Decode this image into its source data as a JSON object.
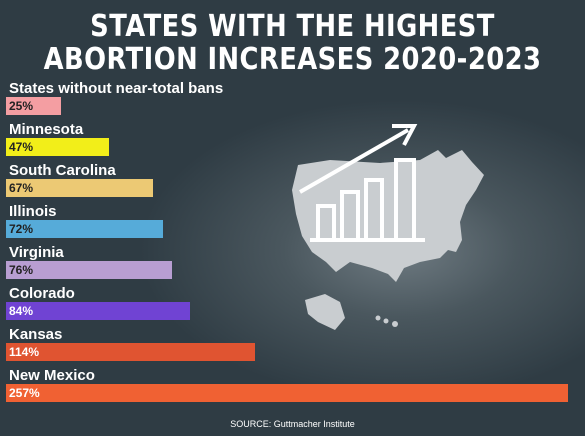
{
  "chart_data": {
    "type": "bar",
    "orientation": "horizontal",
    "title": "STATES WITH THE HIGHEST ABORTION INCREASES 2020-2023",
    "title_lines": [
      "STATES WITH THE HIGHEST",
      "ABORTION INCREASES 2020-2023"
    ],
    "categories": [
      "States without near-total bans",
      "Minnesota",
      "South Carolina",
      "Illinois",
      "Virginia",
      "Colorado",
      "Kansas",
      "New Mexico"
    ],
    "values": [
      25,
      47,
      67,
      72,
      76,
      84,
      114,
      257
    ],
    "value_labels": [
      "25%",
      "47%",
      "67%",
      "72%",
      "76%",
      "84%",
      "114%",
      "257%"
    ],
    "colors": [
      "#f49ea2",
      "#f2ee19",
      "#ecc974",
      "#56abd9",
      "#b89ed2",
      "#7043d3",
      "#e05431",
      "#f06133"
    ],
    "value_label_colors": [
      "#222222",
      "#222222",
      "#222222",
      "#222222",
      "#222222",
      "#ffffff",
      "#ffffff",
      "#ffffff"
    ],
    "xlim": [
      0,
      257
    ],
    "grid": false,
    "legend": "none",
    "source": "SOURCE: Guttmacher Institute",
    "background_graphic": [
      "us-map-icon",
      "bar-chart-icon",
      "up-arrow-icon"
    ]
  }
}
